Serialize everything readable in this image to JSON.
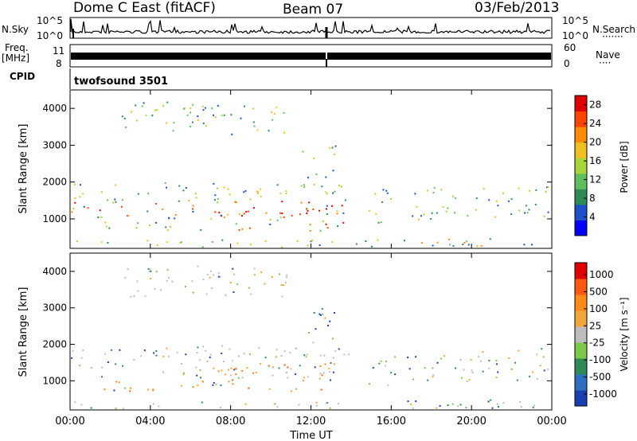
{
  "header": {
    "station": "Dome C East (fitACF)",
    "beam": "Beam 07",
    "date": "03/Feb/2013"
  },
  "top_panels": {
    "nsky_label": "N.Sky",
    "nsearch_label": "N.Search",
    "nsearch_line": "·······",
    "noise_ticks_left": [
      "10^5",
      "10^0"
    ],
    "noise_ticks_right": [
      "10^5",
      "10^0"
    ],
    "freq_label": "Freq.",
    "freq_unit": "[MHz]",
    "freq_ticks": [
      "11",
      "8"
    ],
    "nave_label": "Nave",
    "nave_line": "····",
    "nave_ticks": [
      "60",
      "0"
    ],
    "cpid_label": "CPID",
    "cpid_value": "twofsound 3501"
  },
  "chart_data": [
    {
      "type": "heatmap",
      "panel": "power",
      "xlabel": "Time UT",
      "ylabel": "Slant Range [km]",
      "x_ticks": [
        "00:00",
        "04:00",
        "08:00",
        "12:00",
        "16:00",
        "20:00",
        "00:00"
      ],
      "y_ticks": [
        1000,
        2000,
        3000,
        4000
      ],
      "ylim": [
        200,
        4500
      ],
      "colorbar": {
        "label": "Power [dB]",
        "ticks": [
          4,
          8,
          12,
          16,
          20,
          24,
          28
        ],
        "range": [
          0,
          30
        ],
        "colors": [
          "#0000ff",
          "#1e50c8",
          "#2e8b57",
          "#5fbf5f",
          "#a6d63a",
          "#f0c020",
          "#ff8c00",
          "#ff4500",
          "#e00000"
        ]
      }
    },
    {
      "type": "heatmap",
      "panel": "velocity",
      "xlabel": "Time UT",
      "ylabel": "Slant Range [km]",
      "x_ticks": [
        "00:00",
        "04:00",
        "08:00",
        "12:00",
        "16:00",
        "20:00",
        "00:00"
      ],
      "y_ticks": [
        1000,
        2000,
        3000,
        4000
      ],
      "ylim": [
        200,
        4500
      ],
      "colorbar": {
        "label": "Velocity [m s⁻¹]",
        "ticks": [
          "1000",
          "500",
          "100",
          "25",
          "-25",
          "-100",
          "-500",
          "-1000"
        ],
        "colors": [
          "#1a3fb0",
          "#2f6fc0",
          "#2e8b57",
          "#7cc84a",
          "#bdbdbd",
          "#f2a53a",
          "#ff8a1a",
          "#ff5a10",
          "#e00000"
        ]
      }
    }
  ]
}
